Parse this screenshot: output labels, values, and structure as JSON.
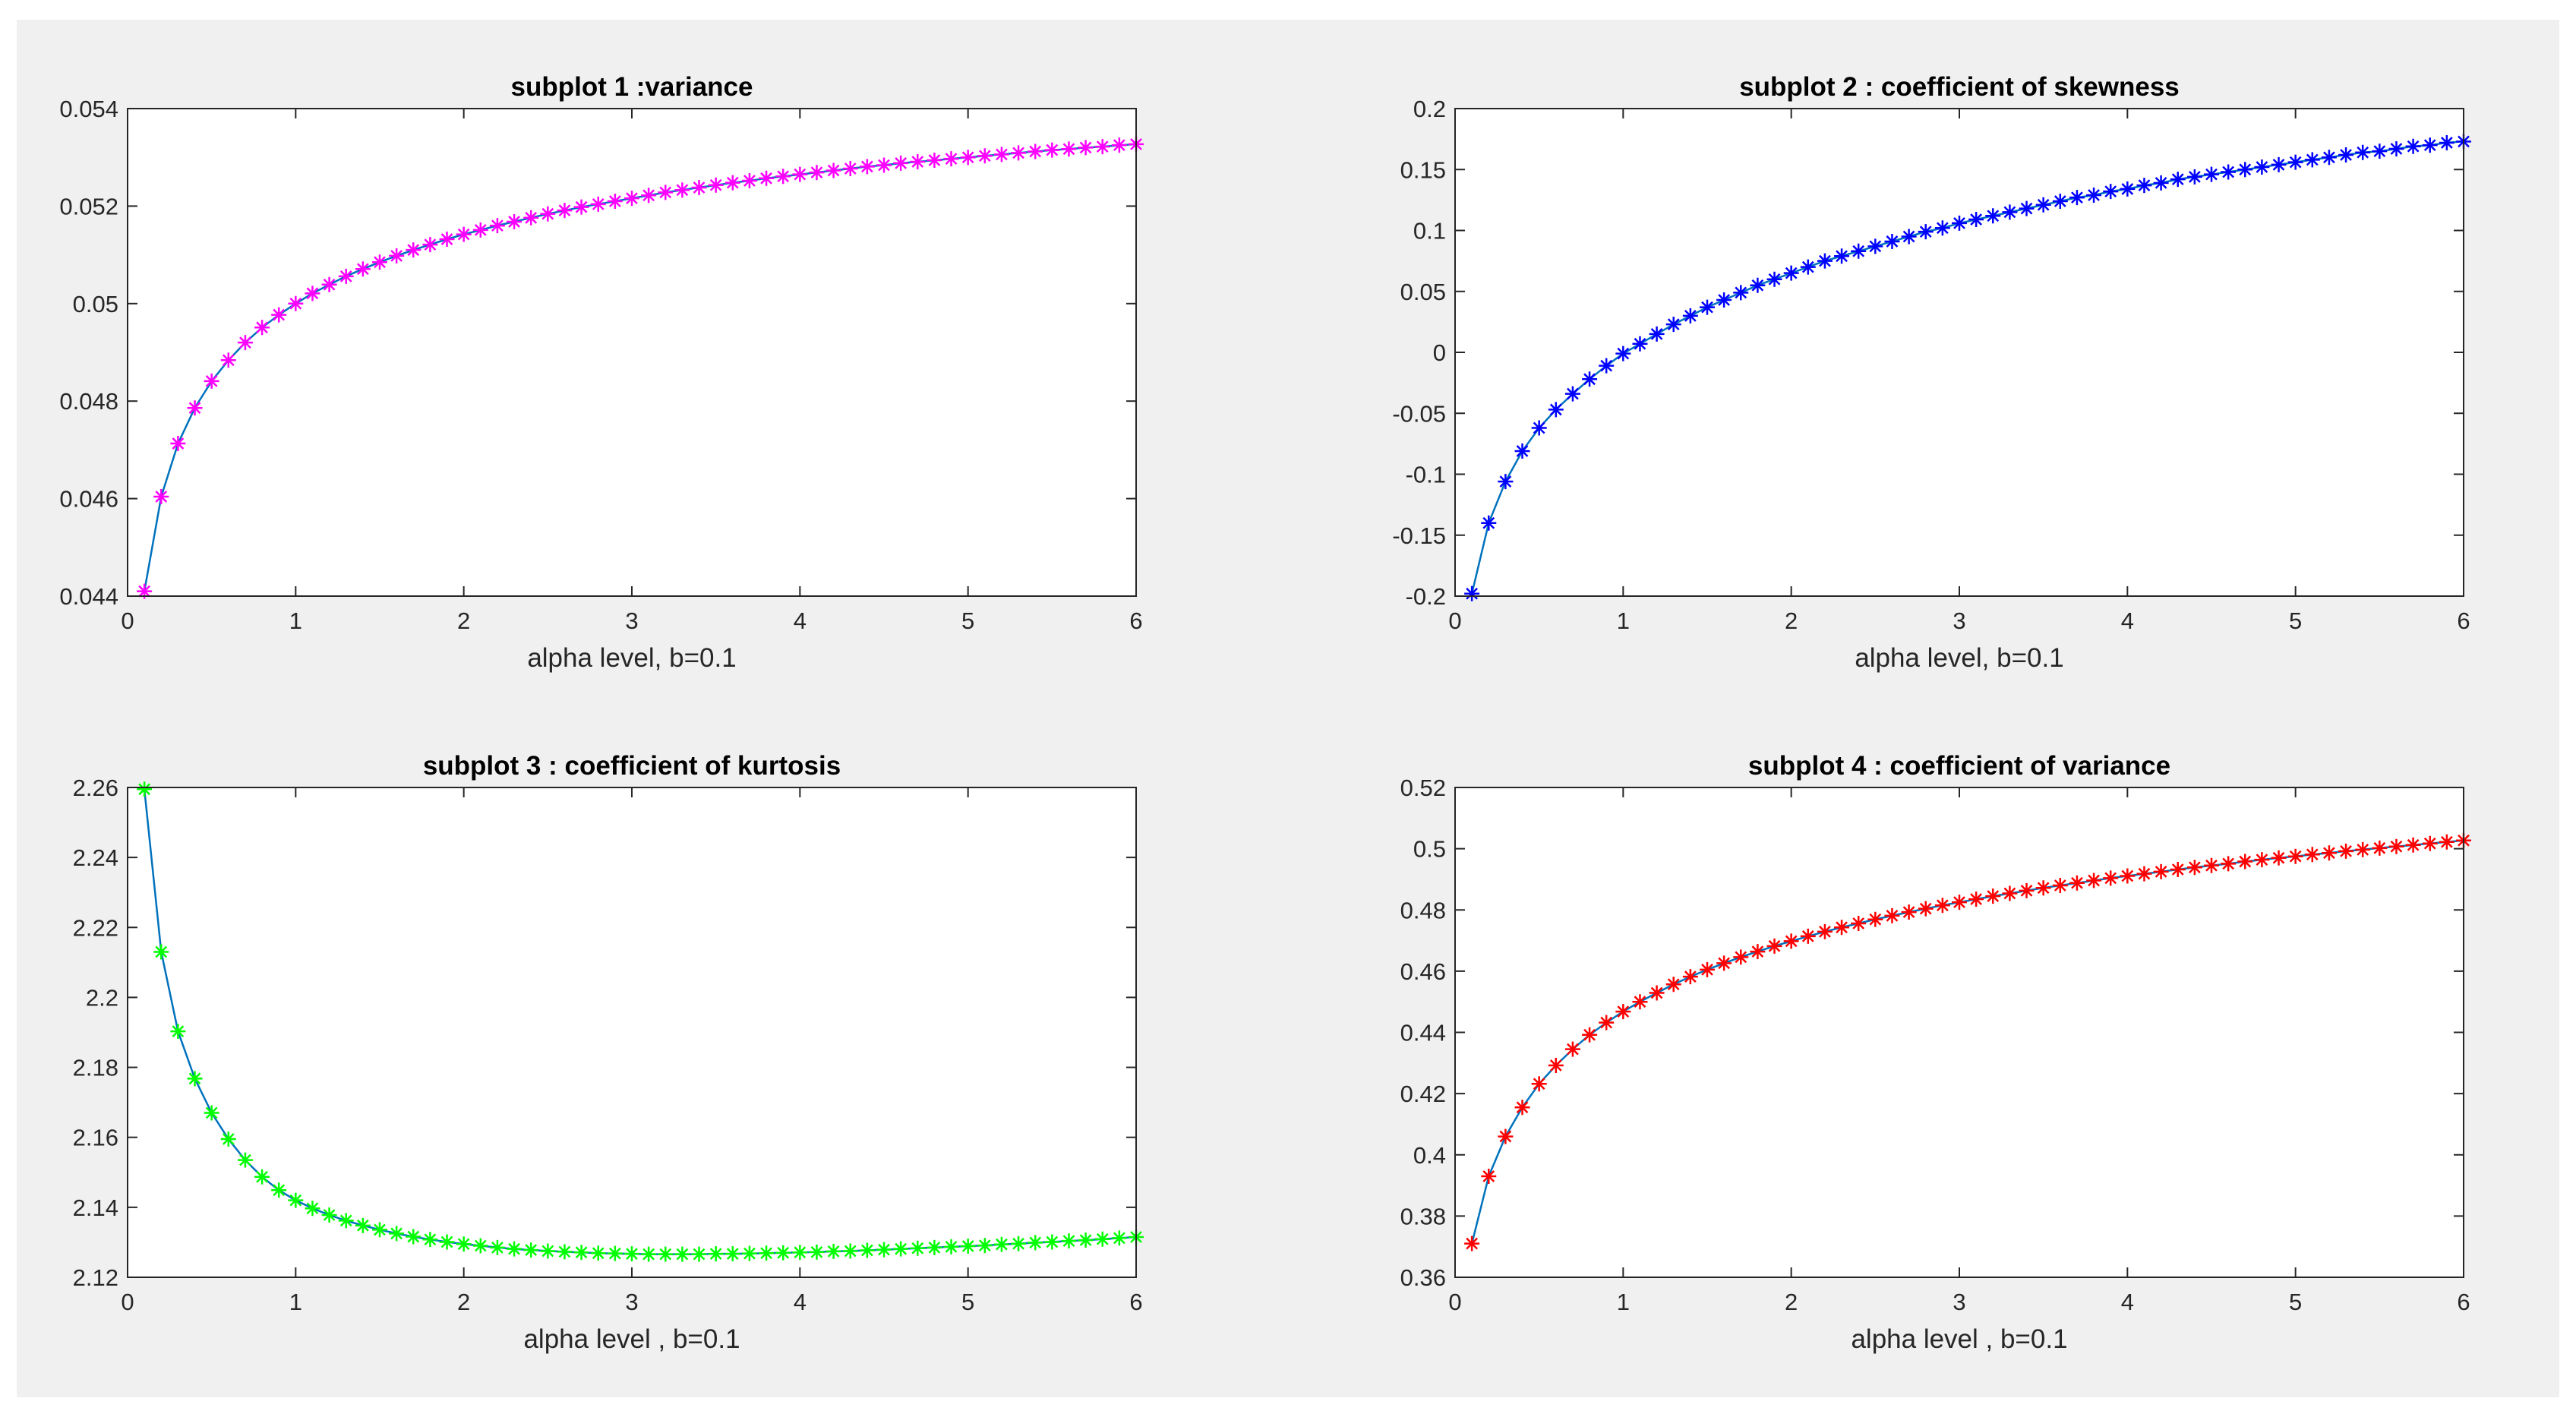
{
  "chart_data": [
    {
      "type": "line",
      "title": "subplot 1 :variance",
      "xlabel": "alpha level, b=0.1",
      "ylabel": "",
      "xlim": [
        0,
        6
      ],
      "ylim": [
        0.044,
        0.054
      ],
      "xticks": [
        0,
        1,
        2,
        3,
        4,
        5,
        6
      ],
      "yticks": [
        0.044,
        0.046,
        0.048,
        0.05,
        0.052,
        0.054
      ],
      "ytick_labels": [
        "0.044",
        "0.046",
        "0.048",
        "0.05",
        "0.052",
        "0.054"
      ],
      "marker": "*",
      "marker_color": "#ff00ff",
      "line_color": "#0072bd",
      "x": [
        0.1,
        0.2,
        0.3,
        0.4,
        0.5,
        0.6,
        0.7,
        0.8,
        0.9,
        1.0,
        1.1,
        1.2,
        1.3,
        1.4,
        1.5,
        1.6,
        1.7,
        1.8,
        1.9,
        2.0,
        2.1,
        2.2,
        2.3,
        2.4,
        2.5,
        2.6,
        2.7,
        2.8,
        2.9,
        3.0,
        3.1,
        3.2,
        3.3,
        3.4,
        3.5,
        3.6,
        3.7,
        3.8,
        3.9,
        4.0,
        4.1,
        4.2,
        4.3,
        4.4,
        4.5,
        4.6,
        4.7,
        4.8,
        4.9,
        5.0,
        5.1,
        5.2,
        5.3,
        5.4,
        5.5,
        5.6,
        5.7,
        5.8,
        5.9,
        6.0
      ],
      "y": [
        0.0441,
        0.04604,
        0.04713,
        0.04786,
        0.04841,
        0.04884,
        0.0492,
        0.04951,
        0.04977,
        0.05,
        0.05021,
        0.05039,
        0.05056,
        0.05071,
        0.05085,
        0.05098,
        0.0511,
        0.05121,
        0.05132,
        0.05142,
        0.05151,
        0.0516,
        0.05168,
        0.05176,
        0.05184,
        0.05191,
        0.05198,
        0.05204,
        0.0521,
        0.05216,
        0.05222,
        0.05228,
        0.05233,
        0.05238,
        0.05243,
        0.05248,
        0.05252,
        0.05257,
        0.05261,
        0.05265,
        0.05269,
        0.05273,
        0.05277,
        0.05281,
        0.05284,
        0.05288,
        0.05291,
        0.05294,
        0.05297,
        0.053,
        0.05303,
        0.05306,
        0.05309,
        0.05312,
        0.05315,
        0.05317,
        0.0532,
        0.05322,
        0.05325,
        0.05327
      ]
    },
    {
      "type": "line",
      "title": "subplot 2 : coefficient of skewness",
      "xlabel": "alpha level, b=0.1",
      "ylabel": "",
      "xlim": [
        0,
        6
      ],
      "ylim": [
        -0.2,
        0.2
      ],
      "xticks": [
        0,
        1,
        2,
        3,
        4,
        5,
        6
      ],
      "yticks": [
        -0.2,
        -0.15,
        -0.1,
        -0.05,
        0,
        0.05,
        0.1,
        0.15,
        0.2
      ],
      "ytick_labels": [
        "-0.2",
        "-0.15",
        "-0.1",
        "-0.05",
        "0",
        "0.05",
        "0.1",
        "0.15",
        "0.2"
      ],
      "marker": "*",
      "marker_color": "#0000ff",
      "line_color": "#0072bd",
      "x": [
        0.1,
        0.2,
        0.3,
        0.4,
        0.5,
        0.6,
        0.7,
        0.8,
        0.9,
        1.0,
        1.1,
        1.2,
        1.3,
        1.4,
        1.5,
        1.6,
        1.7,
        1.8,
        1.9,
        2.0,
        2.1,
        2.2,
        2.3,
        2.4,
        2.5,
        2.6,
        2.7,
        2.8,
        2.9,
        3.0,
        3.1,
        3.2,
        3.3,
        3.4,
        3.5,
        3.6,
        3.7,
        3.8,
        3.9,
        4.0,
        4.1,
        4.2,
        4.3,
        4.4,
        4.5,
        4.6,
        4.7,
        4.8,
        4.9,
        5.0,
        5.1,
        5.2,
        5.3,
        5.4,
        5.5,
        5.6,
        5.7,
        5.8,
        5.9,
        6.0
      ],
      "y": [
        -0.198,
        -0.14,
        -0.106,
        -0.081,
        -0.062,
        -0.047,
        -0.034,
        -0.022,
        -0.011,
        -0.001,
        0.007,
        0.015,
        0.023,
        0.03,
        0.037,
        0.043,
        0.049,
        0.055,
        0.06,
        0.065,
        0.07,
        0.075,
        0.079,
        0.083,
        0.087,
        0.091,
        0.095,
        0.099,
        0.102,
        0.106,
        0.109,
        0.112,
        0.115,
        0.118,
        0.121,
        0.124,
        0.127,
        0.129,
        0.132,
        0.134,
        0.137,
        0.139,
        0.142,
        0.144,
        0.146,
        0.148,
        0.15,
        0.152,
        0.154,
        0.156,
        0.158,
        0.16,
        0.162,
        0.164,
        0.165,
        0.167,
        0.169,
        0.17,
        0.172,
        0.173
      ]
    },
    {
      "type": "line",
      "title": "subplot 3 : coefficient of kurtosis",
      "xlabel": "alpha level , b=0.1",
      "ylabel": "",
      "xlim": [
        0,
        6
      ],
      "ylim": [
        2.12,
        2.26
      ],
      "xticks": [
        0,
        1,
        2,
        3,
        4,
        5,
        6
      ],
      "yticks": [
        2.12,
        2.14,
        2.16,
        2.18,
        2.2,
        2.22,
        2.24,
        2.26
      ],
      "ytick_labels": [
        "2.12",
        "2.14",
        "2.16",
        "2.18",
        "2.2",
        "2.22",
        "2.24",
        "2.26"
      ],
      "marker": "*",
      "marker_color": "#00ff00",
      "line_color": "#0072bd",
      "x": [
        0.1,
        0.2,
        0.3,
        0.4,
        0.5,
        0.6,
        0.7,
        0.8,
        0.9,
        1.0,
        1.1,
        1.2,
        1.3,
        1.4,
        1.5,
        1.6,
        1.7,
        1.8,
        1.9,
        2.0,
        2.1,
        2.2,
        2.3,
        2.4,
        2.5,
        2.6,
        2.7,
        2.8,
        2.9,
        3.0,
        3.1,
        3.2,
        3.3,
        3.4,
        3.5,
        3.6,
        3.7,
        3.8,
        3.9,
        4.0,
        4.1,
        4.2,
        4.3,
        4.4,
        4.5,
        4.6,
        4.7,
        4.8,
        4.9,
        5.0,
        5.1,
        5.2,
        5.3,
        5.4,
        5.5,
        5.6,
        5.7,
        5.8,
        5.9,
        6.0
      ],
      "y": [
        2.2595,
        2.213,
        2.1903,
        2.1768,
        2.167,
        2.1595,
        2.1535,
        2.1487,
        2.1449,
        2.142,
        2.1397,
        2.1378,
        2.1362,
        2.1348,
        2.1336,
        2.1325,
        2.1316,
        2.1308,
        2.1301,
        2.1295,
        2.129,
        2.1285,
        2.1281,
        2.1278,
        2.1275,
        2.1273,
        2.1271,
        2.1269,
        2.1268,
        2.1267,
        2.1266,
        2.1266,
        2.1266,
        2.1266,
        2.1267,
        2.1267,
        2.1268,
        2.1269,
        2.127,
        2.1271,
        2.1272,
        2.1274,
        2.1275,
        2.1277,
        2.1279,
        2.1281,
        2.1283,
        2.1285,
        2.1287,
        2.1289,
        2.1291,
        2.1294,
        2.1296,
        2.1299,
        2.1301,
        2.1304,
        2.1306,
        2.1309,
        2.1312,
        2.1315
      ]
    },
    {
      "type": "line",
      "title": "subplot 4 : coefficient of variance",
      "xlabel": "alpha level , b=0.1",
      "ylabel": "",
      "xlim": [
        0,
        6
      ],
      "ylim": [
        0.36,
        0.52
      ],
      "xticks": [
        0,
        1,
        2,
        3,
        4,
        5,
        6
      ],
      "yticks": [
        0.36,
        0.38,
        0.4,
        0.42,
        0.44,
        0.46,
        0.48,
        0.5,
        0.52
      ],
      "ytick_labels": [
        "0.36",
        "0.38",
        "0.4",
        "0.42",
        "0.44",
        "0.46",
        "0.48",
        "0.5",
        "0.52"
      ],
      "marker": "*",
      "marker_color": "#ff0000",
      "line_color": "#0072bd",
      "x": [
        0.1,
        0.2,
        0.3,
        0.4,
        0.5,
        0.6,
        0.7,
        0.8,
        0.9,
        1.0,
        1.1,
        1.2,
        1.3,
        1.4,
        1.5,
        1.6,
        1.7,
        1.8,
        1.9,
        2.0,
        2.1,
        2.2,
        2.3,
        2.4,
        2.5,
        2.6,
        2.7,
        2.8,
        2.9,
        3.0,
        3.1,
        3.2,
        3.3,
        3.4,
        3.5,
        3.6,
        3.7,
        3.8,
        3.9,
        4.0,
        4.1,
        4.2,
        4.3,
        4.4,
        4.5,
        4.6,
        4.7,
        4.8,
        4.9,
        5.0,
        5.1,
        5.2,
        5.3,
        5.4,
        5.5,
        5.6,
        5.7,
        5.8,
        5.9,
        6.0
      ],
      "y": [
        0.371,
        0.393,
        0.406,
        0.4155,
        0.4232,
        0.4292,
        0.4345,
        0.4392,
        0.4432,
        0.4468,
        0.45,
        0.4529,
        0.4557,
        0.4582,
        0.4605,
        0.4626,
        0.4646,
        0.4664,
        0.4682,
        0.4698,
        0.4714,
        0.4729,
        0.4743,
        0.4756,
        0.4769,
        0.4781,
        0.4793,
        0.4804,
        0.4815,
        0.4825,
        0.4835,
        0.4845,
        0.4854,
        0.4863,
        0.4872,
        0.488,
        0.4888,
        0.4896,
        0.4904,
        0.4911,
        0.4918,
        0.4925,
        0.4932,
        0.4939,
        0.4945,
        0.4951,
        0.4958,
        0.4964,
        0.497,
        0.4975,
        0.4981,
        0.4986,
        0.4992,
        0.4997,
        0.5002,
        0.5007,
        0.5012,
        0.5017,
        0.5022,
        0.5027
      ]
    }
  ]
}
